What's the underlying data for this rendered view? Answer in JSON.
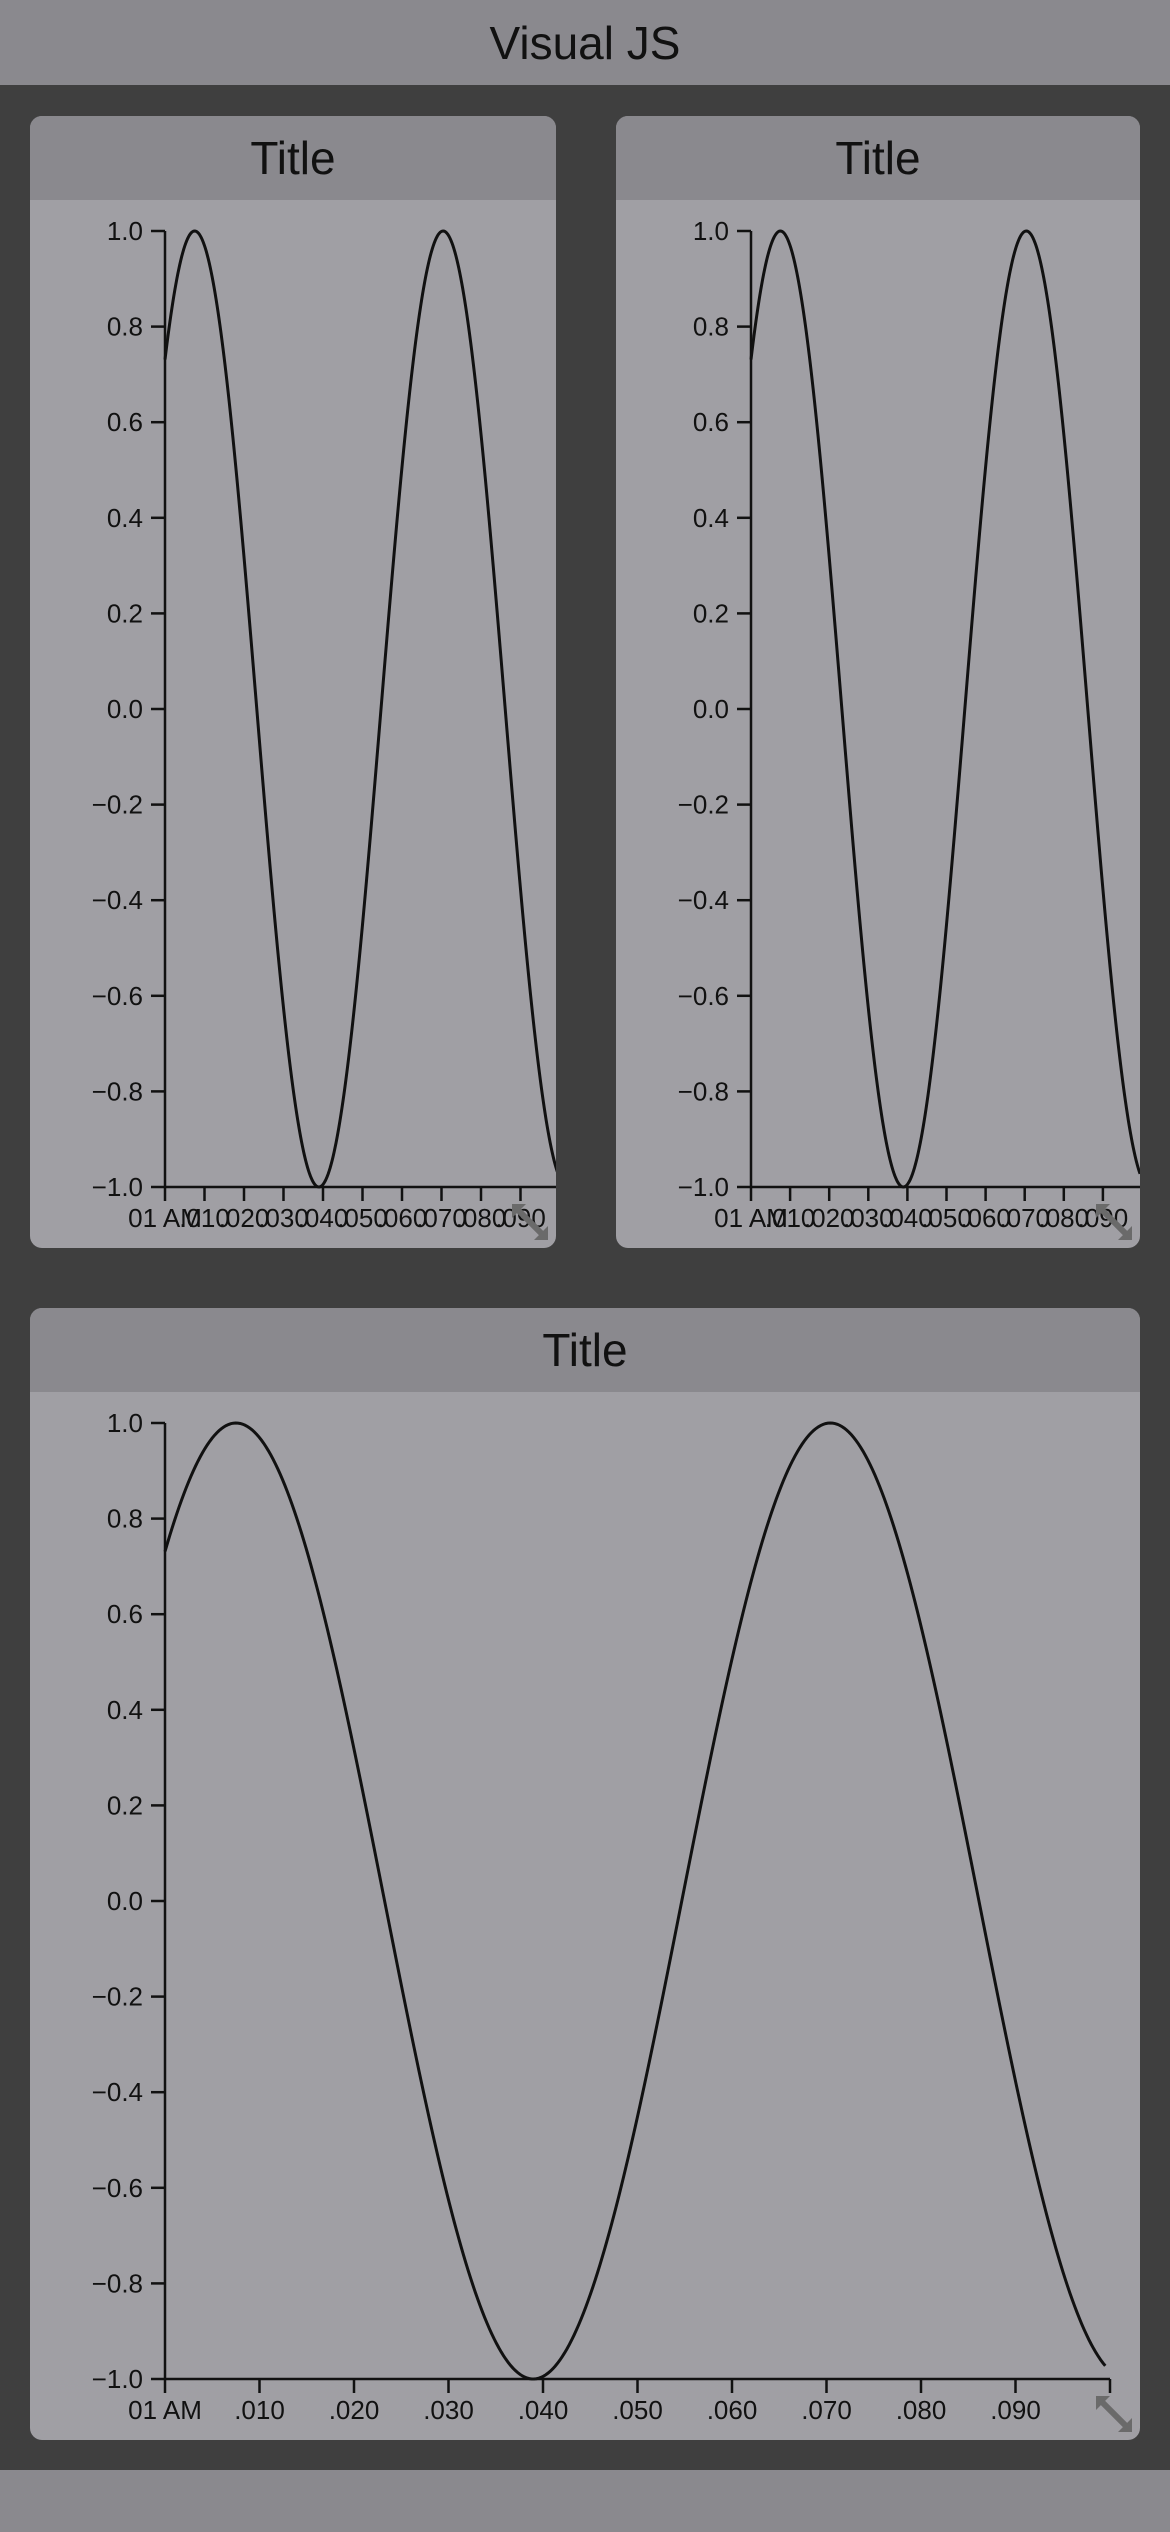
{
  "app": {
    "title": "Visual JS"
  },
  "colors": {
    "header": "#8a898e",
    "panel": "#a09fa4",
    "background": "#3f3f3f",
    "line": "#111111"
  },
  "chart_data": [
    {
      "type": "line",
      "title": "Title",
      "y_ticks": [
        "1.0",
        "0.8",
        "0.6",
        "0.4",
        "0.2",
        "0.0",
        "−0.2",
        "−0.4",
        "−0.6",
        "−0.8",
        "−1.0"
      ],
      "x_ticks": [
        "01 AM",
        ".010",
        ".020",
        ".030",
        ".040",
        ".050",
        ".060",
        ".070",
        ".080",
        ".090"
      ],
      "x_tick_values": [
        0,
        0.01,
        0.02,
        0.03,
        0.04,
        0.05,
        0.06,
        0.07,
        0.08,
        0.09
      ],
      "xlim": [
        0,
        0.1
      ],
      "ylim": [
        -1,
        1
      ],
      "series": [
        {
          "curve": "sine",
          "amplitude": 1.0,
          "frequency_per_unit": 15.9,
          "phase_rad": 0.82
        }
      ],
      "grid": false,
      "resize_icon": "resize-diagonal-icon"
    },
    {
      "type": "line",
      "title": "Title",
      "y_ticks": [
        "1.0",
        "0.8",
        "0.6",
        "0.4",
        "0.2",
        "0.0",
        "−0.2",
        "−0.4",
        "−0.6",
        "−0.8",
        "−1.0"
      ],
      "x_ticks": [
        "01 AM",
        ".010",
        ".020",
        ".030",
        ".040",
        ".050",
        ".060",
        ".070",
        ".080",
        ".090"
      ],
      "x_tick_values": [
        0,
        0.01,
        0.02,
        0.03,
        0.04,
        0.05,
        0.06,
        0.07,
        0.08,
        0.09
      ],
      "xlim": [
        0,
        0.1
      ],
      "ylim": [
        -1,
        1
      ],
      "series": [
        {
          "curve": "sine",
          "amplitude": 1.0,
          "frequency_per_unit": 15.9,
          "phase_rad": 0.82
        }
      ],
      "grid": false,
      "resize_icon": "resize-diagonal-icon"
    },
    {
      "type": "line",
      "title": "Title",
      "y_ticks": [
        "1.0",
        "0.8",
        "0.6",
        "0.4",
        "0.2",
        "0.0",
        "−0.2",
        "−0.4",
        "−0.6",
        "−0.8",
        "−1.0"
      ],
      "x_ticks": [
        "01 AM",
        ".010",
        ".020",
        ".030",
        ".040",
        ".050",
        ".060",
        ".070",
        ".080",
        ".090"
      ],
      "x_tick_values": [
        0,
        0.01,
        0.02,
        0.03,
        0.04,
        0.05,
        0.06,
        0.07,
        0.08,
        0.09
      ],
      "xlim": [
        0,
        0.1
      ],
      "ylim": [
        -1,
        1
      ],
      "series": [
        {
          "curve": "sine",
          "amplitude": 1.0,
          "frequency_per_unit": 15.9,
          "phase_rad": 0.82
        }
      ],
      "grid": false,
      "resize_icon": "resize-diagonal-icon"
    }
  ]
}
